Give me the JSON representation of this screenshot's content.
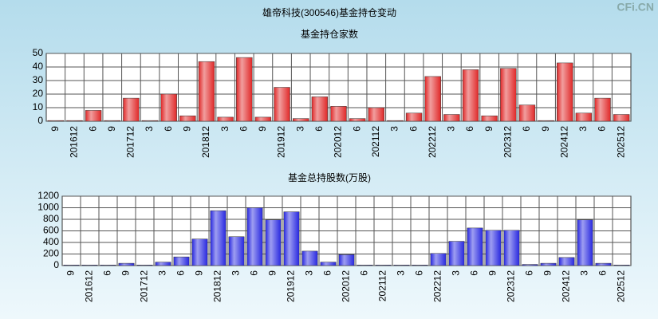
{
  "title": "雄帝科技(300546)基金持仓变动",
  "watermark": "CFi.CN",
  "chart_data": [
    {
      "type": "bar",
      "title": "基金持仓家数",
      "categories": [
        "9",
        "201612",
        "6",
        "9",
        "201712",
        "3",
        "6",
        "9",
        "201812",
        "3",
        "6",
        "9",
        "201912",
        "3",
        "6",
        "202012",
        "6",
        "202112",
        "3",
        "6",
        "202212",
        "3",
        "6",
        "9",
        "202312",
        "6",
        "9",
        "202412",
        "3",
        "6",
        "202512"
      ],
      "values": [
        0.5,
        0.5,
        8,
        0.5,
        17,
        0.5,
        20,
        4,
        44,
        3,
        47,
        3,
        25,
        2,
        18,
        11,
        2,
        10,
        0.5,
        6,
        33,
        5,
        38,
        4,
        39,
        12,
        0.5,
        43,
        6,
        17,
        5
      ],
      "color": "#e02828",
      "ylim": [
        0,
        50
      ],
      "yticks": [
        0,
        10,
        20,
        30,
        40,
        50
      ],
      "grid": true
    },
    {
      "type": "bar",
      "title": "基金总持股数(万股)",
      "categories": [
        "9",
        "201612",
        "6",
        "9",
        "201712",
        "3",
        "6",
        "9",
        "201812",
        "3",
        "6",
        "9",
        "201912",
        "3",
        "6",
        "202012",
        "6",
        "202112",
        "3",
        "6",
        "202212",
        "3",
        "6",
        "9",
        "202312",
        "6",
        "9",
        "202412",
        "3",
        "6",
        "202512"
      ],
      "values": [
        10,
        10,
        10,
        40,
        10,
        60,
        150,
        460,
        950,
        500,
        1000,
        790,
        930,
        250,
        60,
        190,
        10,
        10,
        10,
        10,
        210,
        420,
        650,
        610,
        610,
        20,
        40,
        140,
        790,
        40,
        10
      ],
      "color": "#2828e0",
      "ylim": [
        0,
        1200
      ],
      "yticks": [
        0,
        200,
        400,
        600,
        800,
        1000,
        1200
      ],
      "grid": true
    }
  ]
}
